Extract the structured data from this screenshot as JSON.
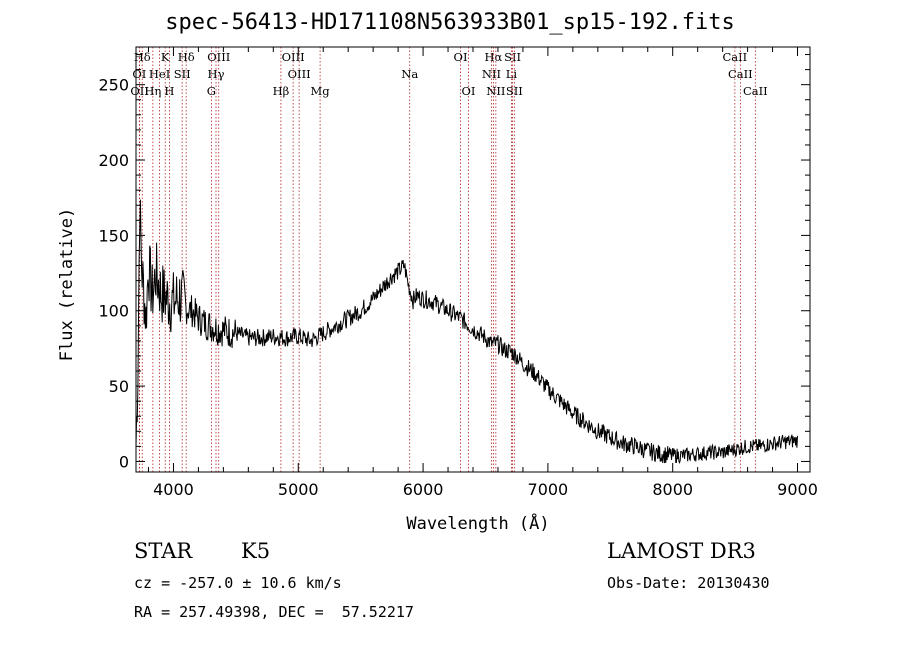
{
  "title": "spec-56413-HD171108N563933B01_sp15-192.fits",
  "chart_data": {
    "type": "line",
    "title": "spec-56413-HD171108N563933B01_sp15-192.fits",
    "xlabel": "Wavelength (Å)",
    "ylabel": "Flux (relative)",
    "xlim": [
      3700,
      9100
    ],
    "ylim": [
      -7,
      275
    ],
    "xticks": [
      4000,
      5000,
      6000,
      7000,
      8000,
      9000
    ],
    "yticks": [
      0,
      50,
      100,
      150,
      200,
      250
    ],
    "series": [
      {
        "name": "flux",
        "x": [
          3700,
          3715,
          3730,
          3745,
          3760,
          3780,
          3800,
          3830,
          3860,
          3900,
          3950,
          4000,
          4050,
          4100,
          4150,
          4200,
          4250,
          4300,
          4350,
          4400,
          4500,
          4600,
          4700,
          4800,
          4900,
          5000,
          5100,
          5200,
          5300,
          5400,
          5500,
          5600,
          5700,
          5750,
          5800,
          5850,
          5880,
          5920,
          5950,
          6000,
          6050,
          6100,
          6200,
          6300,
          6400,
          6500,
          6550,
          6600,
          6650,
          6700,
          6750,
          6800,
          6900,
          7000,
          7100,
          7200,
          7300,
          7400,
          7500,
          7600,
          7700,
          7800,
          7900,
          8000,
          8100,
          8200,
          8300,
          8400,
          8500,
          8600,
          8700,
          8800,
          8900,
          9000
        ],
        "y": [
          10,
          60,
          170,
          130,
          115,
          95,
          130,
          110,
          125,
          112,
          108,
          105,
          110,
          102,
          100,
          95,
          92,
          90,
          88,
          87,
          85,
          82,
          82,
          83,
          82,
          83,
          80,
          85,
          90,
          95,
          100,
          108,
          118,
          123,
          126,
          130,
          118,
          107,
          110,
          108,
          107,
          105,
          100,
          95,
          88,
          82,
          78,
          78,
          74,
          73,
          70,
          65,
          58,
          48,
          40,
          32,
          26,
          20,
          16,
          12,
          10,
          7,
          5,
          4,
          4,
          5,
          6,
          6,
          8,
          10,
          10,
          12,
          13,
          14
        ]
      }
    ],
    "lines": [
      {
        "label": "Hδ",
        "wave": 3750,
        "row": 0
      },
      {
        "label": "K",
        "wave": 3934,
        "row": 0
      },
      {
        "label": "Hδ",
        "wave": 4102,
        "row": 0
      },
      {
        "label": "OIII",
        "wave": 4363,
        "row": 0
      },
      {
        "label": "OIII",
        "wave": 4959,
        "row": 0
      },
      {
        "label": "OI",
        "wave": 6300,
        "row": 0
      },
      {
        "label": "Hα",
        "wave": 6563,
        "row": 0
      },
      {
        "label": "SII",
        "wave": 6717,
        "row": 0
      },
      {
        "label": "CaII",
        "wave": 8498,
        "row": 0
      },
      {
        "label": "OI",
        "wave": 3727,
        "row": 1
      },
      {
        "label": "HeI",
        "wave": 3889,
        "row": 1
      },
      {
        "label": "SII",
        "wave": 4070,
        "row": 1
      },
      {
        "label": "Hγ",
        "wave": 4341,
        "row": 1
      },
      {
        "label": "OIII",
        "wave": 5007,
        "row": 1
      },
      {
        "label": "Na",
        "wave": 5893,
        "row": 1
      },
      {
        "label": "NII",
        "wave": 6548,
        "row": 1
      },
      {
        "label": "Li",
        "wave": 6708,
        "row": 1
      },
      {
        "label": "CaII",
        "wave": 8542,
        "row": 1
      },
      {
        "label": "OII",
        "wave": 3729,
        "row": 2
      },
      {
        "label": "Hη",
        "wave": 3835,
        "row": 2
      },
      {
        "label": "H",
        "wave": 3968,
        "row": 2
      },
      {
        "label": "G",
        "wave": 4304,
        "row": 2
      },
      {
        "label": "Hβ",
        "wave": 4861,
        "row": 2
      },
      {
        "label": "Mg",
        "wave": 5175,
        "row": 2
      },
      {
        "label": "OI",
        "wave": 6364,
        "row": 2
      },
      {
        "label": "NII",
        "wave": 6583,
        "row": 2
      },
      {
        "label": "SII",
        "wave": 6731,
        "row": 2
      },
      {
        "label": "CaII",
        "wave": 8662,
        "row": 2
      }
    ],
    "line_color": "#b22222"
  },
  "info": {
    "object_type": "STAR",
    "subclass": "K5",
    "survey": "LAMOST DR3",
    "cz": "cz = -257.0 ± 10.6 km/s",
    "obs_date": "Obs-Date: 20130430",
    "coords": "RA = 257.49398, DEC =  57.52217"
  }
}
